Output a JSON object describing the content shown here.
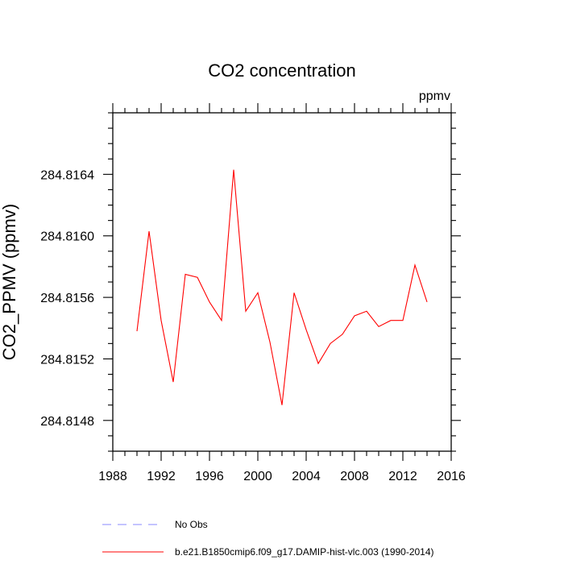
{
  "chart_data": {
    "type": "line",
    "title": "CO2 concentration",
    "units_label": "ppmv",
    "xlabel": "",
    "ylabel": "CO2_PPMV  (ppmv)",
    "xlim": [
      1988,
      2016
    ],
    "ylim": [
      284.8146,
      284.8168
    ],
    "x_ticks": [
      1988,
      1992,
      1996,
      2000,
      2004,
      2008,
      2012,
      2016
    ],
    "y_ticks": [
      284.8148,
      284.8152,
      284.8156,
      284.816,
      284.8164
    ],
    "y_tick_decimals": 4,
    "grid": false,
    "series": [
      {
        "name": "b.e21.B1850cmip6.f09_g17.DAMIP-hist-vlc.003 (1990-2014)",
        "color": "#ff0000",
        "dashed": false,
        "x": [
          1990,
          1991,
          1992,
          1993,
          1994,
          1995,
          1996,
          1997,
          1998,
          1999,
          2000,
          2001,
          2002,
          2003,
          2004,
          2005,
          2006,
          2007,
          2008,
          2009,
          2010,
          2011,
          2012,
          2013,
          2014
        ],
        "values": [
          284.81538,
          284.81603,
          284.81545,
          284.81505,
          284.81575,
          284.81573,
          284.81557,
          284.81545,
          284.81643,
          284.81551,
          284.81563,
          284.81531,
          284.8149,
          284.81563,
          284.81539,
          284.81517,
          284.8153,
          284.81536,
          284.81548,
          284.81551,
          284.81541,
          284.81545,
          284.81545,
          284.81581,
          284.81557
        ]
      }
    ],
    "legend": [
      {
        "label": "No Obs",
        "color": "#8a8aff",
        "dashed": true
      },
      {
        "label": "b.e21.B1850cmip6.f09_g17.DAMIP-hist-vlc.003 (1990-2014)",
        "color": "#ff0000",
        "dashed": false
      }
    ],
    "legend_position": "bottom"
  }
}
